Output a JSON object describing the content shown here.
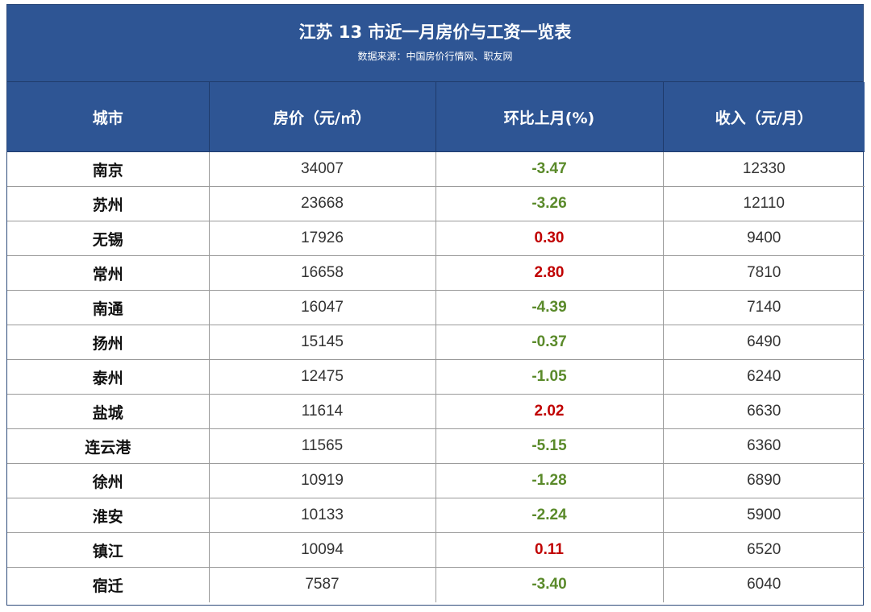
{
  "header": {
    "title": "江苏 13 市近一月房价与工资一览表",
    "subtitle": "数据来源：中国房价行情网、职友网"
  },
  "columns": [
    "城市",
    "房价（元/㎡）",
    "环比上月(%)",
    "收入（元/月）"
  ],
  "colors": {
    "header_bg": "#2e5594",
    "negative": "#5a8a2a",
    "positive": "#c00000"
  },
  "rows": [
    {
      "city": "南京",
      "price": "34007",
      "change": "-3.47",
      "income": "12330"
    },
    {
      "city": "苏州",
      "price": "23668",
      "change": "-3.26",
      "income": "12110"
    },
    {
      "city": "无锡",
      "price": "17926",
      "change": "0.30",
      "income": "9400"
    },
    {
      "city": "常州",
      "price": "16658",
      "change": "2.80",
      "income": "7810"
    },
    {
      "city": "南通",
      "price": "16047",
      "change": "-4.39",
      "income": "7140"
    },
    {
      "city": "扬州",
      "price": "15145",
      "change": "-0.37",
      "income": "6490"
    },
    {
      "city": "泰州",
      "price": "12475",
      "change": "-1.05",
      "income": "6240"
    },
    {
      "city": "盐城",
      "price": "11614",
      "change": "2.02",
      "income": "6630"
    },
    {
      "city": "连云港",
      "price": "11565",
      "change": "-5.15",
      "income": "6360"
    },
    {
      "city": "徐州",
      "price": "10919",
      "change": "-1.28",
      "income": "6890"
    },
    {
      "city": "淮安",
      "price": "10133",
      "change": "-2.24",
      "income": "5900"
    },
    {
      "city": "镇江",
      "price": "10094",
      "change": "0.11",
      "income": "6520"
    },
    {
      "city": "宿迁",
      "price": "7587",
      "change": "-3.40",
      "income": "6040"
    }
  ]
}
